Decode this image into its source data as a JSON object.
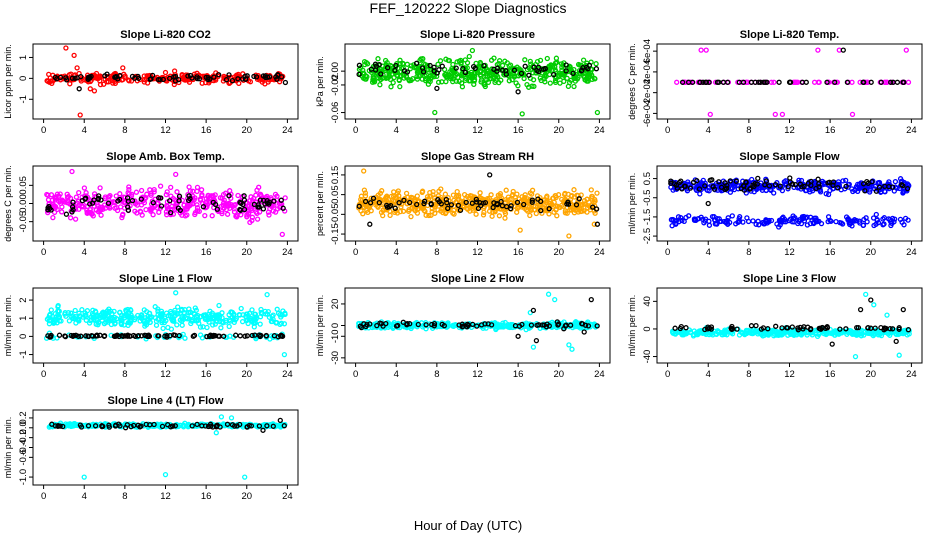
{
  "figure": {
    "title": "FEF_120222  Slope Diagnostics",
    "xlabel": "Hour of Day (UTC)"
  },
  "chart_data": [
    {
      "type": "scatter",
      "title": "Slope Li-820 CO2",
      "ylabel": "Licor ppm per min.",
      "xlim": [
        0,
        24
      ],
      "ylim": [
        -1.8,
        1.5
      ],
      "xticks": [
        "0",
        "4",
        "8",
        "12",
        "16",
        "20",
        "24"
      ],
      "yticks": [
        {
          "v": -1,
          "label": "-1"
        },
        {
          "v": 0,
          "label": "0"
        },
        {
          "v": 1,
          "label": "1"
        }
      ],
      "series": [
        {
          "color": "#ff0000",
          "band": [
            -0.35,
            0.35
          ],
          "n": 260,
          "outliers": [
            [
              2.2,
              1.45
            ],
            [
              3.0,
              1.1
            ],
            [
              3.6,
              -1.75
            ],
            [
              4.6,
              -0.5
            ],
            [
              5.0,
              -0.6
            ],
            [
              5.6,
              -0.3
            ],
            [
              3.3,
              0.5
            ],
            [
              7.8,
              0.5
            ],
            [
              12.9,
              0.35
            ]
          ]
        },
        {
          "color": "#000000",
          "band": [
            -0.15,
            0.25
          ],
          "n": 70,
          "outliers": [
            [
              3.5,
              -0.5
            ],
            [
              23.8,
              -0.2
            ]
          ]
        }
      ]
    },
    {
      "type": "scatter",
      "title": "Slope Li-820 Pressure",
      "ylabel": "kPa per min.",
      "xlim": [
        0,
        24
      ],
      "ylim": [
        -0.065,
        0.035
      ],
      "xticks": [
        "0",
        "4",
        "8",
        "12",
        "16",
        "20",
        "24"
      ],
      "yticks": [
        {
          "v": 0.0,
          "label": "0.00"
        },
        {
          "v": -0.02,
          "label": "-0.02"
        },
        {
          "v": -0.06,
          "label": "-0.06"
        }
      ],
      "series": [
        {
          "color": "#00cc00",
          "band": [
            -0.03,
            0.025
          ],
          "n": 480,
          "outliers": [
            [
              7.8,
              -0.06
            ],
            [
              16.4,
              -0.062
            ],
            [
              23.8,
              -0.06
            ],
            [
              11.5,
              0.03
            ]
          ]
        },
        {
          "color": "#000000",
          "band": [
            -0.01,
            0.015
          ],
          "n": 55,
          "outliers": [
            [
              8.0,
              -0.025
            ],
            [
              16.0,
              -0.03
            ],
            [
              19.5,
              -0.005
            ]
          ]
        }
      ]
    },
    {
      "type": "scatter",
      "title": "Slope Li-820 Temp.",
      "ylabel": "degrees C per min.",
      "xlim": [
        0,
        24
      ],
      "ylim": [
        -0.00065,
        0.00068
      ],
      "xticks": [
        "0",
        "4",
        "8",
        "12",
        "16",
        "20",
        "24"
      ],
      "yticks": [
        {
          "v": -0.0006,
          "label": "-6e-04"
        },
        {
          "v": -0.0002,
          "label": "-2e-04"
        },
        {
          "v": 0.0002,
          "label": "2e-04"
        },
        {
          "v": 0.0006,
          "label": "6e-04"
        }
      ],
      "series": [
        {
          "color": "#ff00ff",
          "band": [
            0,
            0
          ],
          "n": 60,
          "outliers": [
            [
              3.3,
              0.00062
            ],
            [
              3.8,
              0.00062
            ],
            [
              4.2,
              -0.00062
            ],
            [
              10.6,
              -0.00062
            ],
            [
              11.3,
              -0.00062
            ],
            [
              14.8,
              0.00062
            ],
            [
              16.9,
              0.00062
            ],
            [
              18.2,
              -0.00062
            ],
            [
              23.5,
              0.00062
            ]
          ]
        },
        {
          "color": "#000000",
          "band": [
            0,
            0
          ],
          "n": 40,
          "outliers": [
            [
              17.3,
              0.00062
            ]
          ]
        }
      ]
    },
    {
      "type": "scatter",
      "title": "Slope Amb. Box Temp.",
      "ylabel": "degrees C per min.",
      "xlim": [
        0,
        24
      ],
      "ylim": [
        -0.095,
        0.095
      ],
      "xticks": [
        "0",
        "4",
        "8",
        "12",
        "16",
        "20",
        "24"
      ],
      "yticks": [
        {
          "v": -0.05,
          "label": "-0.05"
        },
        {
          "v": 0.0,
          "label": "0.00"
        },
        {
          "v": 0.05,
          "label": "0.05"
        }
      ],
      "series": [
        {
          "color": "#ff00ff",
          "band": [
            -0.06,
            0.06
          ],
          "n": 420,
          "outliers": [
            [
              2.8,
              0.088
            ],
            [
              23.5,
              -0.085
            ],
            [
              13.0,
              0.08
            ]
          ]
        },
        {
          "color": "#000000",
          "band": [
            -0.04,
            0.04
          ],
          "n": 70,
          "outliers": []
        }
      ]
    },
    {
      "type": "scatter",
      "title": "Slope Gas Stream RH",
      "ylabel": "percent per min.",
      "xlim": [
        0,
        24
      ],
      "ylim": [
        -0.17,
        0.18
      ],
      "xticks": [
        "0",
        "4",
        "8",
        "12",
        "16",
        "20",
        "24"
      ],
      "yticks": [
        {
          "v": -0.15,
          "label": "-0.15"
        },
        {
          "v": -0.05,
          "label": "-0.05"
        },
        {
          "v": 0.05,
          "label": "0.05"
        },
        {
          "v": 0.15,
          "label": "0.15"
        }
      ],
      "series": [
        {
          "color": "#ffa500",
          "band": [
            -0.08,
            0.09
          ],
          "n": 520,
          "outliers": [
            [
              0.8,
              0.17
            ],
            [
              16.2,
              -0.13
            ],
            [
              21.0,
              -0.16
            ],
            [
              23.5,
              -0.1
            ]
          ]
        },
        {
          "color": "#000000",
          "band": [
            -0.05,
            0.05
          ],
          "n": 60,
          "outliers": [
            [
              13.2,
              0.15
            ],
            [
              1.4,
              -0.1
            ],
            [
              23.8,
              -0.1
            ]
          ]
        }
      ]
    },
    {
      "type": "scatter",
      "title": "Slope Sample Flow",
      "ylabel": "ml/min per min.",
      "xlim": [
        0,
        24
      ],
      "ylim": [
        -2.6,
        1.0
      ],
      "xticks": [
        "0",
        "4",
        "8",
        "12",
        "16",
        "20",
        "24"
      ],
      "yticks": [
        {
          "v": -2.5,
          "label": "-2.5"
        },
        {
          "v": -1.5,
          "label": "-1.5"
        },
        {
          "v": -0.5,
          "label": "-0.5"
        },
        {
          "v": 0.5,
          "label": "0.5"
        }
      ],
      "series": [
        {
          "color": "#0000ff",
          "band": [
            -0.4,
            0.6
          ],
          "n": 320,
          "outliers": []
        },
        {
          "color": "#0000ff",
          "band": [
            -2.1,
            -1.3
          ],
          "n": 170,
          "outliers": []
        },
        {
          "color": "#000000",
          "band": [
            -0.3,
            0.6
          ],
          "n": 80,
          "outliers": [
            [
              4.0,
              -0.8
            ]
          ]
        }
      ]
    },
    {
      "type": "scatter",
      "title": "Slope Line 1 Flow",
      "ylabel": "ml/min per min.",
      "xlim": [
        0,
        24
      ],
      "ylim": [
        -1.3,
        2.5
      ],
      "xticks": [
        "0",
        "4",
        "8",
        "12",
        "16",
        "20",
        "24"
      ],
      "yticks": [
        {
          "v": -1,
          "label": "-1"
        },
        {
          "v": 0,
          "label": "0"
        },
        {
          "v": 1,
          "label": "1"
        },
        {
          "v": 2,
          "label": "2"
        }
      ],
      "series": [
        {
          "color": "#00ffff",
          "band": [
            0.3,
            1.8
          ],
          "n": 380,
          "outliers": [
            [
              13.0,
              2.4
            ],
            [
              22.0,
              2.3
            ],
            [
              23.7,
              -1.0
            ],
            [
              0.3,
              -0.1
            ]
          ]
        },
        {
          "color": "#00ffff",
          "band": [
            -0.2,
            0.2
          ],
          "n": 60,
          "outliers": []
        },
        {
          "color": "#000000",
          "band": [
            -0.05,
            0.1
          ],
          "n": 90,
          "outliers": []
        }
      ]
    },
    {
      "type": "scatter",
      "title": "Slope Line 2 Flow",
      "ylabel": "ml/min per min.",
      "xlim": [
        0,
        24
      ],
      "ylim": [
        -32,
        32
      ],
      "xticks": [
        "0",
        "4",
        "8",
        "12",
        "16",
        "20",
        "24"
      ],
      "yticks": [
        {
          "v": -30,
          "label": "-30"
        },
        {
          "v": -10,
          "label": "-10"
        },
        {
          "v": 0,
          "label": "0"
        },
        {
          "v": 20,
          "label": "20"
        }
      ],
      "series": [
        {
          "color": "#00ffff",
          "band": [
            -4,
            4
          ],
          "n": 360,
          "outliers": [
            [
              19.0,
              29
            ],
            [
              19.6,
              24
            ],
            [
              17.5,
              -20
            ],
            [
              21.0,
              -18
            ],
            [
              21.3,
              -22
            ],
            [
              17.2,
              12
            ]
          ]
        },
        {
          "color": "#000000",
          "band": [
            -3,
            4
          ],
          "n": 60,
          "outliers": [
            [
              16.0,
              -10
            ],
            [
              17.8,
              -14
            ],
            [
              22.5,
              -6
            ],
            [
              23.2,
              24
            ],
            [
              17.5,
              14
            ],
            [
              20.5,
              -3
            ]
          ]
        }
      ]
    },
    {
      "type": "scatter",
      "title": "Slope Line 3 Flow",
      "ylabel": "ml/min per min.",
      "xlim": [
        0,
        24
      ],
      "ylim": [
        -45,
        55
      ],
      "xticks": [
        "0",
        "4",
        "8",
        "12",
        "16",
        "20",
        "24"
      ],
      "yticks": [
        {
          "v": -40,
          "label": "-40"
        },
        {
          "v": 0,
          "label": "0"
        },
        {
          "v": 40,
          "label": "40"
        }
      ],
      "series": [
        {
          "color": "#00ffff",
          "band": [
            -12,
            2
          ],
          "n": 380,
          "outliers": [
            [
              19.5,
              50
            ],
            [
              20.3,
              35
            ],
            [
              18.5,
              -40
            ],
            [
              22.8,
              -38
            ],
            [
              21.6,
              20
            ]
          ]
        },
        {
          "color": "#000000",
          "band": [
            -3,
            6
          ],
          "n": 60,
          "outliers": [
            [
              16.2,
              -22
            ],
            [
              19.0,
              28
            ],
            [
              20.0,
              42
            ],
            [
              23.2,
              28
            ],
            [
              22.5,
              -18
            ]
          ]
        }
      ]
    },
    {
      "type": "scatter",
      "title": "Slope Line 4 (LT) Flow",
      "ylabel": "ml/min per min.",
      "xlim": [
        0,
        24
      ],
      "ylim": [
        -1.1,
        0.3
      ],
      "xticks": [
        "0",
        "4",
        "8",
        "12",
        "16",
        "20",
        "24"
      ],
      "yticks": [
        {
          "v": -1.0,
          "label": "-1.0"
        },
        {
          "v": -0.6,
          "label": "-0.6"
        },
        {
          "v": -0.4,
          "label": "-0.4"
        },
        {
          "v": -0.2,
          "label": "-0.2"
        },
        {
          "v": 0.0,
          "label": "0.0"
        },
        {
          "v": 0.2,
          "label": "0.2"
        }
      ],
      "series": [
        {
          "color": "#00ffff",
          "band": [
            0.0,
            0.1
          ],
          "n": 300,
          "outliers": [
            [
              4.0,
              -1.0
            ],
            [
              12.0,
              -0.95
            ],
            [
              19.8,
              -1.0
            ],
            [
              17.5,
              0.22
            ],
            [
              18.5,
              0.2
            ],
            [
              17.0,
              -0.1
            ]
          ]
        },
        {
          "color": "#000000",
          "band": [
            -0.01,
            0.1
          ],
          "n": 60,
          "outliers": [
            [
              21.6,
              -0.05
            ],
            [
              23.3,
              0.15
            ]
          ]
        }
      ]
    }
  ]
}
